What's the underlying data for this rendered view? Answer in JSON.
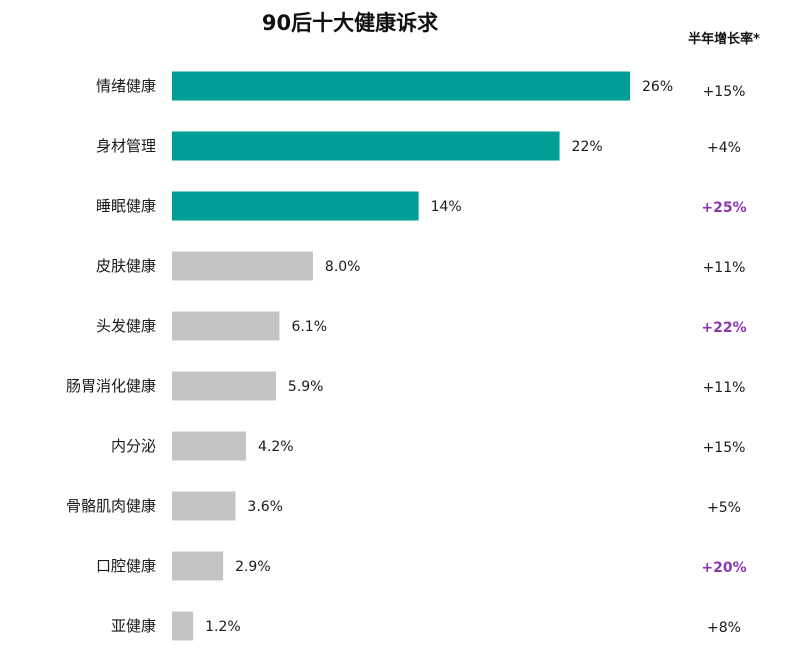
{
  "chart_data": {
    "type": "bar",
    "orientation": "horizontal",
    "title": "90后十大健康诉求",
    "growth_header": "半年增长率*",
    "categories": [
      "情绪健康",
      "身材管理",
      "睡眠健康",
      "皮肤健康",
      "头发健康",
      "肠胃消化健康",
      "内分泌",
      "骨骼肌肉健康",
      "口腔健康",
      "亚健康"
    ],
    "values": [
      26,
      22,
      14,
      8.0,
      6.1,
      5.9,
      4.2,
      3.6,
      2.9,
      1.2
    ],
    "value_labels": [
      "26%",
      "22%",
      "14%",
      "8.0%",
      "6.1%",
      "5.9%",
      "4.2%",
      "3.6%",
      "2.9%",
      "1.2%"
    ],
    "growth": [
      "+15%",
      "+4%",
      "+25%",
      "+11%",
      "+22%",
      "+11%",
      "+15%",
      "+5%",
      "+20%",
      "+8%"
    ],
    "growth_highlight": [
      false,
      false,
      true,
      false,
      true,
      false,
      false,
      false,
      true,
      false
    ],
    "highlight_top_n": 3,
    "xlim": [
      0,
      26
    ],
    "grid": false
  },
  "colors": {
    "highlight_bar": "#009e96",
    "normal_bar": "#c4c4c4",
    "highlight_growth": "#8a37b0"
  }
}
